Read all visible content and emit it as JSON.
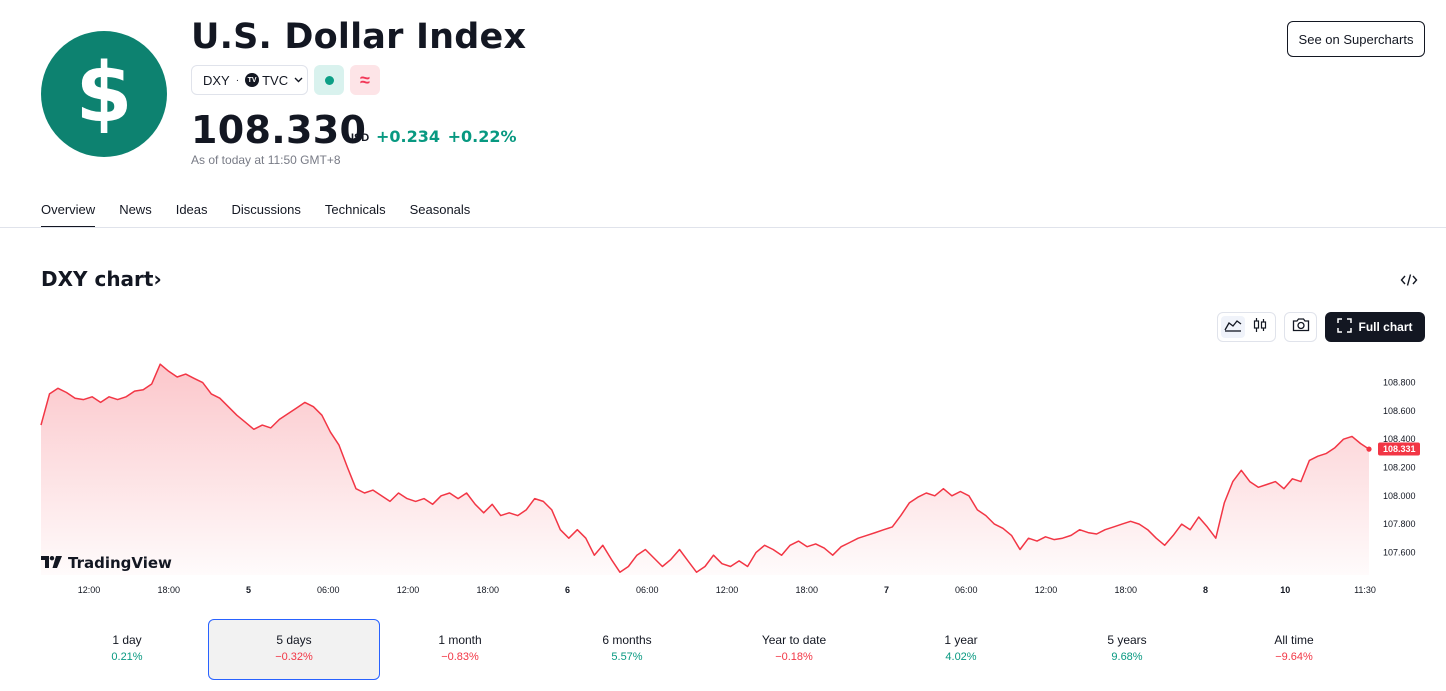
{
  "header": {
    "logo_glyph": "$",
    "title": "U.S. Dollar Index",
    "symbol": "DXY",
    "exchange": "TVC",
    "price": "108.330",
    "currency": "USD",
    "change_abs": "+0.234",
    "change_pct": "+0.22%",
    "as_of": "As of today at 11:50 GMT+8",
    "supercharts_label": "See on Supercharts",
    "colors": {
      "logo_bg": "#0d8270",
      "positive": "#089981",
      "negative": "#f23645"
    }
  },
  "tabs": [
    "Overview",
    "News",
    "Ideas",
    "Discussions",
    "Technicals",
    "Seasonals"
  ],
  "chart_section": {
    "title": "DXY chart",
    "title_chevron": "›",
    "full_chart_label": "Full chart",
    "watermark": "TradingView",
    "icons": [
      "code-embed-icon",
      "line-chart-icon",
      "candles-icon",
      "camera-icon",
      "fullscreen-icon"
    ]
  },
  "chart_data": {
    "type": "area",
    "color": "#f23645",
    "last_value_label": "108.331",
    "last_value": 108.331,
    "ylim": [
      107.44,
      108.96
    ],
    "y_ticks": [
      107.6,
      107.8,
      108.0,
      108.2,
      108.4,
      108.6,
      108.8
    ],
    "y_tick_labels": [
      "107.600",
      "107.800",
      "108.000",
      "108.200",
      "108.400",
      "108.600",
      "108.800"
    ],
    "x_tick_labels": [
      "12:00",
      "18:00",
      "5",
      "06:00",
      "12:00",
      "18:00",
      "6",
      "06:00",
      "12:00",
      "18:00",
      "7",
      "06:00",
      "12:00",
      "18:00",
      "8",
      "10",
      "11:30"
    ],
    "series": [
      {
        "values": [
          108.5,
          108.72,
          108.76,
          108.73,
          108.69,
          108.68,
          108.7,
          108.66,
          108.7,
          108.68,
          108.7,
          108.74,
          108.75,
          108.79,
          108.93,
          108.88,
          108.84,
          108.86,
          108.83,
          108.8,
          108.72,
          108.69,
          108.63,
          108.57,
          108.52,
          108.47,
          108.5,
          108.48,
          108.54,
          108.58,
          108.62,
          108.66,
          108.63,
          108.57,
          108.45,
          108.36,
          108.2,
          108.05,
          108.02,
          108.04,
          108.0,
          107.96,
          108.02,
          107.98,
          107.96,
          107.98,
          107.94,
          108.0,
          108.02,
          107.98,
          108.02,
          107.94,
          107.88,
          107.94,
          107.86,
          107.88,
          107.86,
          107.9,
          107.98,
          107.96,
          107.9,
          107.76,
          107.7,
          107.76,
          107.7,
          107.58,
          107.65,
          107.55,
          107.46,
          107.5,
          107.58,
          107.62,
          107.56,
          107.5,
          107.55,
          107.62,
          107.54,
          107.46,
          107.5,
          107.58,
          107.52,
          107.5,
          107.54,
          107.5,
          107.6,
          107.65,
          107.62,
          107.58,
          107.65,
          107.68,
          107.64,
          107.66,
          107.63,
          107.58,
          107.64,
          107.67,
          107.7,
          107.72,
          107.74,
          107.76,
          107.78,
          107.86,
          107.95,
          107.99,
          108.02,
          108.0,
          108.05,
          108.0,
          108.03,
          108.0,
          107.9,
          107.86,
          107.8,
          107.77,
          107.72,
          107.62,
          107.7,
          107.68,
          107.71,
          107.69,
          107.7,
          107.72,
          107.76,
          107.74,
          107.73,
          107.76,
          107.78,
          107.8,
          107.82,
          107.8,
          107.76,
          107.7,
          107.65,
          107.72,
          107.8,
          107.76,
          107.85,
          107.78,
          107.7,
          107.95,
          108.1,
          108.18,
          108.1,
          108.06,
          108.08,
          108.1,
          108.05,
          108.12,
          108.1,
          108.25,
          108.28,
          108.3,
          108.34,
          108.4,
          108.42,
          108.37,
          108.33
        ]
      }
    ]
  },
  "periods": [
    {
      "label": "1 day",
      "value": "0.21%",
      "sign": "pos"
    },
    {
      "label": "5 days",
      "value": "−0.32%",
      "sign": "neg"
    },
    {
      "label": "1 month",
      "value": "−0.83%",
      "sign": "neg"
    },
    {
      "label": "6 months",
      "value": "5.57%",
      "sign": "pos"
    },
    {
      "label": "Year to date",
      "value": "−0.18%",
      "sign": "neg"
    },
    {
      "label": "1 year",
      "value": "4.02%",
      "sign": "pos"
    },
    {
      "label": "5 years",
      "value": "9.68%",
      "sign": "pos"
    },
    {
      "label": "All time",
      "value": "−9.64%",
      "sign": "neg"
    }
  ],
  "selected_period": 1
}
